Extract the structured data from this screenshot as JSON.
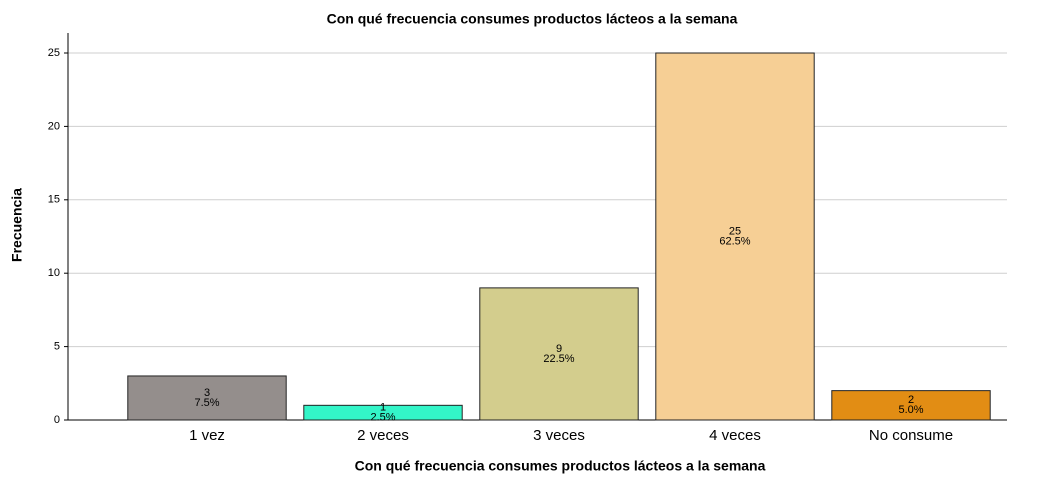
{
  "chart_data": {
    "type": "bar",
    "title": "Con qué frecuencia consumes productos lácteos a la semana",
    "x_label": "Con qué frecuencia consumes productos lácteos a la semana",
    "y_label": "Frecuencia",
    "categories": [
      "1 vez",
      "2 veces",
      "3 veces",
      "4 veces",
      "No consume"
    ],
    "values": [
      3,
      1,
      9,
      25,
      2
    ],
    "percents": [
      7.5,
      2.5,
      22.5,
      62.5,
      5
    ],
    "percent_labels": [
      "7.5%",
      "2.5%",
      "22.5%",
      "62.5%",
      "5.0%"
    ],
    "colors": [
      "#948e8c",
      "#33f5c8",
      "#d3cd8d",
      "#f6cf95",
      "#e28d14"
    ],
    "ylim": [
      0,
      25
    ],
    "yticks": [
      0,
      5,
      10,
      15,
      20,
      25
    ],
    "grid": true
  }
}
